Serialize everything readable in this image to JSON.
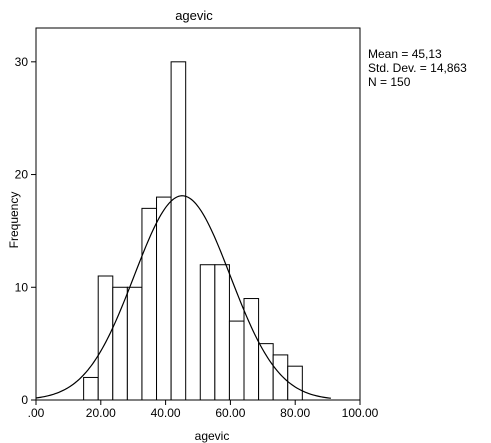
{
  "chart_data": {
    "type": "bar",
    "title": "agevic",
    "xlabel": "agevic",
    "ylabel": "Frequency",
    "xlim": [
      0,
      100
    ],
    "ylim": [
      0,
      33
    ],
    "x_ticks": [
      0,
      20,
      40,
      60,
      80,
      100
    ],
    "x_tick_labels": [
      ".00",
      "20.00",
      "40.00",
      "60.00",
      "80.00",
      "100.00"
    ],
    "y_ticks": [
      0,
      10,
      20,
      30
    ],
    "y_tick_labels": [
      "0",
      "10",
      "20",
      "30"
    ],
    "bin_width": 4.5,
    "bins": [
      {
        "start": 14.7,
        "end": 19.2,
        "value": 2
      },
      {
        "start": 19.2,
        "end": 23.7,
        "value": 11
      },
      {
        "start": 23.7,
        "end": 28.2,
        "value": 10
      },
      {
        "start": 28.2,
        "end": 32.7,
        "value": 10
      },
      {
        "start": 32.7,
        "end": 37.2,
        "value": 17
      },
      {
        "start": 37.2,
        "end": 41.7,
        "value": 18
      },
      {
        "start": 41.7,
        "end": 46.2,
        "value": 30
      },
      {
        "start": 46.2,
        "end": 50.7,
        "value": 0
      },
      {
        "start": 50.7,
        "end": 55.2,
        "value": 12
      },
      {
        "start": 55.2,
        "end": 59.7,
        "value": 12
      },
      {
        "start": 59.7,
        "end": 64.2,
        "value": 7
      },
      {
        "start": 64.2,
        "end": 68.7,
        "value": 9
      },
      {
        "start": 68.7,
        "end": 73.2,
        "value": 5
      },
      {
        "start": 73.2,
        "end": 77.7,
        "value": 4
      },
      {
        "start": 77.7,
        "end": 82.2,
        "value": 3
      }
    ],
    "normal_curve": {
      "mean": 45.13,
      "std_dev": 14.863,
      "n": 150
    },
    "stats_lines": [
      "Mean = 45,13",
      "Std. Dev. = 14,863",
      "N = 150"
    ],
    "grid": false,
    "colors": {
      "bar_fill": "#ffffff",
      "bar_stroke": "#000000",
      "curve": "#000000",
      "frame": "#000000"
    }
  }
}
